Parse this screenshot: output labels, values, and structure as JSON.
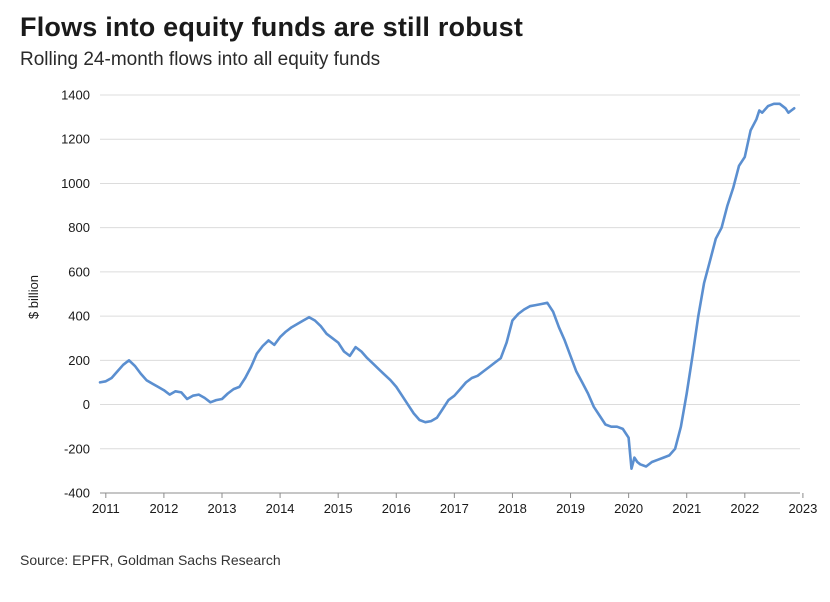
{
  "header": {
    "title": "Flows into equity funds are still robust",
    "subtitle": "Rolling 24-month flows into all equity funds"
  },
  "footer": {
    "source": "Source: EPFR, Goldman Sachs Research"
  },
  "chart_data": {
    "type": "line",
    "title": "Flows into equity funds are still robust",
    "subtitle": "Rolling 24-month flows into all equity funds",
    "xlabel": "",
    "ylabel": "$ billion",
    "xlim": [
      2010.9,
      2022.95
    ],
    "ylim": [
      -400,
      1400
    ],
    "yticks": [
      -400,
      -200,
      0,
      200,
      400,
      600,
      800,
      1000,
      1200,
      1400
    ],
    "xtick_labels": [
      "2011",
      "2012",
      "2013",
      "2014",
      "2015",
      "2016",
      "2017",
      "2018",
      "2019",
      "2020",
      "2021",
      "2022",
      "2023"
    ],
    "grid": true,
    "legend": "none",
    "colors": {
      "line": "#5b8fd0",
      "grid": "#dcdcdc"
    },
    "series": [
      {
        "x": [
          2010.9,
          2011.0,
          2011.1,
          2011.2,
          2011.3,
          2011.4,
          2011.5,
          2011.6,
          2011.7,
          2011.8,
          2011.9,
          2012.0,
          2012.1,
          2012.2,
          2012.3,
          2012.4,
          2012.5,
          2012.6,
          2012.7,
          2012.8,
          2012.9,
          2013.0,
          2013.1,
          2013.2,
          2013.3,
          2013.4,
          2013.5,
          2013.6,
          2013.7,
          2013.8,
          2013.9,
          2014.0,
          2014.1,
          2014.2,
          2014.3,
          2014.4,
          2014.5,
          2014.6,
          2014.7,
          2014.8,
          2014.9,
          2015.0,
          2015.1,
          2015.2,
          2015.3,
          2015.4,
          2015.5,
          2015.6,
          2015.7,
          2015.8,
          2015.9,
          2016.0,
          2016.1,
          2016.2,
          2016.3,
          2016.4,
          2016.5,
          2016.6,
          2016.7,
          2016.8,
          2016.9,
          2017.0,
          2017.1,
          2017.2,
          2017.3,
          2017.4,
          2017.5,
          2017.6,
          2017.7,
          2017.8,
          2017.9,
          2018.0,
          2018.1,
          2018.2,
          2018.3,
          2018.4,
          2018.5,
          2018.6,
          2018.7,
          2018.8,
          2018.9,
          2019.0,
          2019.1,
          2019.2,
          2019.3,
          2019.4,
          2019.5,
          2019.6,
          2019.7,
          2019.8,
          2019.9,
          2020.0,
          2020.05,
          2020.1,
          2020.15,
          2020.2,
          2020.3,
          2020.4,
          2020.5,
          2020.6,
          2020.7,
          2020.8,
          2020.9,
          2021.0,
          2021.1,
          2021.2,
          2021.3,
          2021.4,
          2021.5,
          2021.6,
          2021.7,
          2021.8,
          2021.9,
          2022.0,
          2022.1,
          2022.2,
          2022.25,
          2022.3,
          2022.4,
          2022.5,
          2022.6,
          2022.7,
          2022.75,
          2022.8,
          2022.85
        ],
        "values": [
          100,
          105,
          120,
          150,
          180,
          200,
          175,
          140,
          110,
          95,
          80,
          65,
          45,
          60,
          55,
          25,
          40,
          45,
          30,
          10,
          20,
          25,
          50,
          70,
          80,
          120,
          170,
          230,
          265,
          290,
          270,
          305,
          330,
          350,
          365,
          380,
          395,
          380,
          355,
          320,
          300,
          280,
          240,
          220,
          260,
          240,
          210,
          185,
          160,
          135,
          110,
          80,
          40,
          0,
          -40,
          -70,
          -80,
          -75,
          -60,
          -20,
          20,
          40,
          70,
          100,
          120,
          130,
          150,
          170,
          190,
          210,
          280,
          380,
          410,
          430,
          445,
          450,
          455,
          460,
          420,
          350,
          290,
          220,
          150,
          100,
          50,
          -10,
          -50,
          -90,
          -100,
          -100,
          -110,
          -150,
          -290,
          -240,
          -260,
          -270,
          -280,
          -260,
          -250,
          -240,
          -230,
          -200,
          -100,
          50,
          220,
          400,
          550,
          650,
          750,
          800,
          900,
          980,
          1080,
          1120,
          1240,
          1290,
          1330,
          1320,
          1350,
          1360,
          1360,
          1340,
          1320,
          1330,
          1340
        ]
      }
    ]
  }
}
